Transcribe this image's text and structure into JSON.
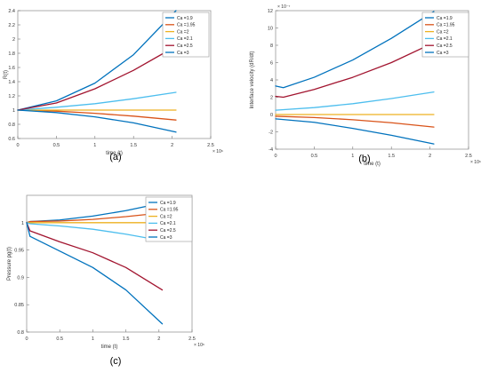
{
  "chart_data": [
    {
      "type": "line",
      "panel_label": "(a)",
      "ylabel": "R(t)",
      "xlabel": "time (t)",
      "x_exponent": "× 10⁶",
      "y_exponent": "",
      "xlim": [
        0,
        2.5
      ],
      "ylim": [
        0.6,
        2.4
      ],
      "xticks": [
        "0",
        "0.5",
        "1",
        "1.5",
        "2",
        "2.5"
      ],
      "yticks": [
        "0.6",
        "0.8",
        "1",
        "1.2",
        "1.4",
        "1.6",
        "1.8",
        "2",
        "2.2",
        "2.4"
      ],
      "legend_position": "top-right",
      "series": [
        {
          "name": "Ca =1.9",
          "color": "#0072BD",
          "x": [
            0,
            0.5,
            1.0,
            1.5,
            2.05
          ],
          "y": [
            1.0,
            1.13,
            1.38,
            1.78,
            2.4
          ]
        },
        {
          "name": "Ca =1.95",
          "color": "#D95319",
          "x": [
            0,
            0.5,
            1.0,
            1.5,
            2.05
          ],
          "y": [
            1.0,
            0.985,
            0.955,
            0.915,
            0.86
          ]
        },
        {
          "name": "Ca =2",
          "color": "#EDB120",
          "x": [
            0,
            0.5,
            1.0,
            1.5,
            2.05
          ],
          "y": [
            1.0,
            1.0,
            1.0,
            1.0,
            1.0
          ]
        },
        {
          "name": "Ca =2.1",
          "color": "#4DBEEE",
          "x": [
            0,
            0.5,
            1.0,
            1.5,
            2.05
          ],
          "y": [
            1.0,
            1.04,
            1.09,
            1.16,
            1.25
          ]
        },
        {
          "name": "Ca =2.5",
          "color": "#A2142F",
          "x": [
            0,
            0.5,
            1.0,
            1.5,
            2.05
          ],
          "y": [
            1.0,
            1.1,
            1.3,
            1.56,
            1.9
          ]
        },
        {
          "name": "Ca =3",
          "color": "#0072BD",
          "x": [
            0,
            0.5,
            1.0,
            1.5,
            2.05
          ],
          "y": [
            1.0,
            0.965,
            0.905,
            0.82,
            0.69
          ]
        }
      ]
    },
    {
      "type": "line",
      "panel_label": "(b)",
      "ylabel": "Interface velocity (dR/dt)",
      "xlabel": "time (t)",
      "x_exponent": "× 10⁶",
      "y_exponent": "× 10⁻⁷",
      "xlim": [
        0,
        2.5
      ],
      "ylim": [
        -4,
        12
      ],
      "xticks": [
        "0",
        "0.5",
        "1",
        "1.5",
        "2",
        "2.5"
      ],
      "yticks": [
        "-4",
        "-2",
        "0",
        "2",
        "4",
        "6",
        "8",
        "10",
        "12"
      ],
      "legend_position": "top-right",
      "series": [
        {
          "name": "Ca =1.9",
          "color": "#0072BD",
          "x": [
            0,
            0.1,
            0.5,
            1.0,
            1.5,
            2.05
          ],
          "y": [
            3.3,
            3.1,
            4.3,
            6.3,
            8.8,
            11.9
          ]
        },
        {
          "name": "Ca =1.95",
          "color": "#D95319",
          "x": [
            0,
            0.5,
            1.0,
            1.5,
            2.05
          ],
          "y": [
            -0.2,
            -0.35,
            -0.6,
            -0.95,
            -1.45
          ]
        },
        {
          "name": "Ca =2",
          "color": "#EDB120",
          "x": [
            0,
            2.05
          ],
          "y": [
            0,
            0
          ]
        },
        {
          "name": "Ca =2.1",
          "color": "#4DBEEE",
          "x": [
            0,
            0.5,
            1.0,
            1.5,
            2.05
          ],
          "y": [
            0.5,
            0.8,
            1.25,
            1.85,
            2.6
          ]
        },
        {
          "name": "Ca =2.5",
          "color": "#A2142F",
          "x": [
            0,
            0.1,
            0.5,
            1.0,
            1.5,
            2.05
          ],
          "y": [
            2.1,
            2.0,
            2.9,
            4.3,
            6.0,
            8.3
          ]
        },
        {
          "name": "Ca =3",
          "color": "#0072BD",
          "x": [
            0,
            0.5,
            1.0,
            1.5,
            2.05
          ],
          "y": [
            -0.5,
            -0.9,
            -1.6,
            -2.4,
            -3.4
          ]
        }
      ]
    },
    {
      "type": "line",
      "panel_label": "(c)",
      "ylabel": "Pressure pg(t)",
      "xlabel": "time (t)",
      "x_exponent": "× 10⁶",
      "y_exponent": "",
      "xlim": [
        0,
        2.5
      ],
      "ylim": [
        0.8,
        1.05
      ],
      "xticks": [
        "0",
        "0.5",
        "1",
        "1.5",
        "2",
        "2.5"
      ],
      "yticks": [
        "0.8",
        "0.85",
        "0.9",
        "0.95",
        "1"
      ],
      "legend_position": "top-right",
      "series": [
        {
          "name": "Ca =1.9",
          "color": "#0072BD",
          "x": [
            0,
            0.05,
            0.5,
            1.0,
            1.5,
            2.05
          ],
          "y": [
            1.0,
            1.002,
            1.005,
            1.012,
            1.022,
            1.036
          ]
        },
        {
          "name": "Ca =1.95",
          "color": "#D95319",
          "x": [
            0,
            0.05,
            0.5,
            1.0,
            1.5,
            2.05
          ],
          "y": [
            1.0,
            1.002,
            1.003,
            1.006,
            1.011,
            1.018
          ]
        },
        {
          "name": "Ca =2",
          "color": "#EDB120",
          "x": [
            0,
            2.05
          ],
          "y": [
            1.0,
            1.0
          ]
        },
        {
          "name": "Ca =2.1",
          "color": "#4DBEEE",
          "x": [
            0,
            0.05,
            0.5,
            1.0,
            1.5,
            2.05
          ],
          "y": [
            1.0,
            0.998,
            0.994,
            0.988,
            0.979,
            0.967
          ]
        },
        {
          "name": "Ca =2.5",
          "color": "#A2142F",
          "x": [
            0,
            0.05,
            0.5,
            1.0,
            1.5,
            2.05
          ],
          "y": [
            1.0,
            0.985,
            0.965,
            0.945,
            0.918,
            0.877
          ]
        },
        {
          "name": "Ca =3",
          "color": "#0072BD",
          "x": [
            0,
            0.05,
            0.5,
            1.0,
            1.5,
            2.05
          ],
          "y": [
            1.0,
            0.975,
            0.948,
            0.918,
            0.877,
            0.815
          ]
        }
      ]
    }
  ]
}
